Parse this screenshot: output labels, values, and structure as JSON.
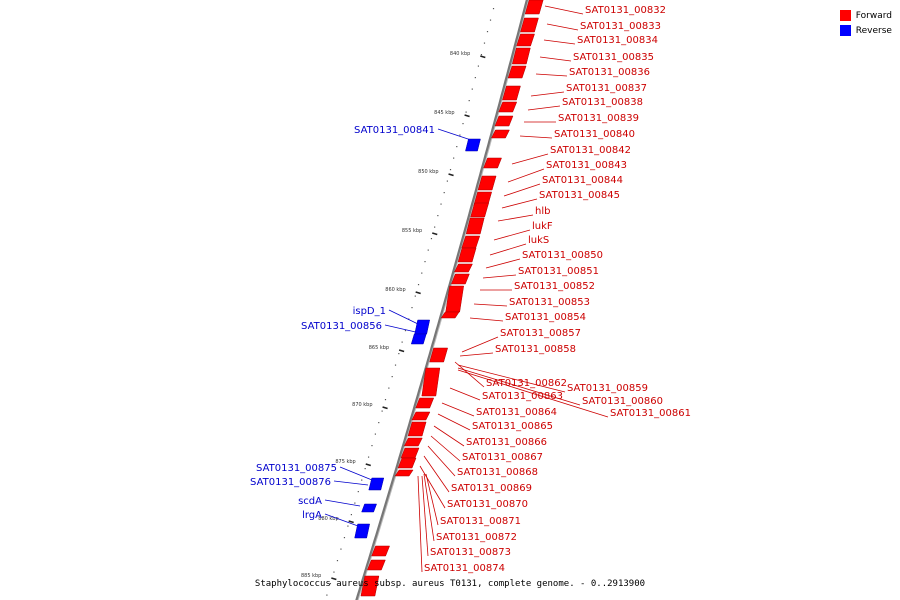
{
  "colors": {
    "forward": "#ff0000",
    "reverse": "#0000ff",
    "forward_link": "#cc0000",
    "reverse_link": "#0000cc",
    "backbone": "#777777"
  },
  "legend": [
    {
      "label": "Forward",
      "color": "#ff0000"
    },
    {
      "label": "Reverse",
      "color": "#0000ff"
    }
  ],
  "caption": "Staphylococcus aureus subsp. aureus T0131, complete genome. - 0..2913900",
  "ticks": [
    "840 kbp",
    "845 kbp",
    "850 kbp",
    "855 kbp",
    "860 kbp",
    "865 kbp",
    "870 kbp",
    "875 kbp",
    "880 kbp",
    "885 kbp"
  ],
  "forward_labels": [
    "SAT0131_00832",
    "SAT0131_00833",
    "SAT0131_00834",
    "SAT0131_00835",
    "SAT0131_00836",
    "SAT0131_00837",
    "SAT0131_00838",
    "SAT0131_00839",
    "SAT0131_00840",
    "SAT0131_00842",
    "SAT0131_00843",
    "SAT0131_00844",
    "SAT0131_00845",
    "hlb",
    "lukF",
    "lukS",
    "SAT0131_00850",
    "SAT0131_00851",
    "SAT0131_00852",
    "SAT0131_00853",
    "SAT0131_00854",
    "SAT0131_00857",
    "SAT0131_00858",
    "SAT0131_00862",
    "SAT0131_00859",
    "SAT0131_00863",
    "SAT0131_00860",
    "SAT0131_00861",
    "SAT0131_00864",
    "SAT0131_00865",
    "SAT0131_00866",
    "SAT0131_00867",
    "SAT0131_00868",
    "SAT0131_00869",
    "SAT0131_00870",
    "SAT0131_00871",
    "SAT0131_00872",
    "SAT0131_00873",
    "SAT0131_00874"
  ],
  "reverse_labels": [
    "SAT0131_00841",
    "ispD_1",
    "SAT0131_00856",
    "SAT0131_00875",
    "SAT0131_00876",
    "scdA",
    "lrgA"
  ]
}
